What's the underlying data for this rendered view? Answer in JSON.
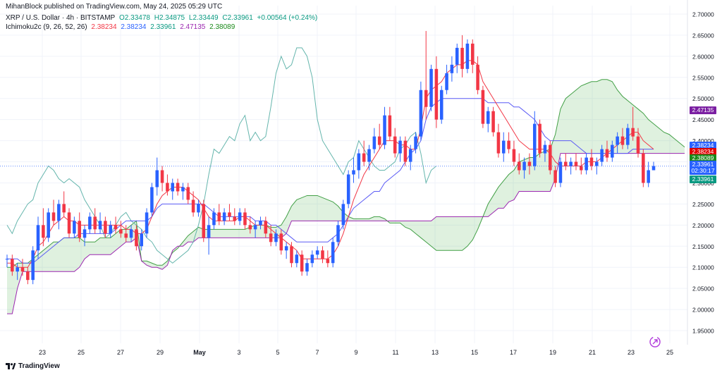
{
  "header": {
    "publisher": "MihanBlock published on TradingView.com, May 24, 2025 05:29 UTC",
    "symbol": "XRP / U.S. Dollar · 4h · BITSTAMP",
    "open": "O2.33478",
    "high": "H2.34875",
    "low": "L2.33449",
    "close": "C2.33961",
    "change": "+0.00564 (+0.24%)",
    "indicator": "Ichimoku2c (9, 26, 52, 26)",
    "ind_values": [
      "2.38234",
      "2.38234",
      "2.33961",
      "2.47135",
      "2.38089"
    ]
  },
  "price_tags": [
    {
      "label": "2.47135",
      "color": "#7b1fa2",
      "value": 2.47135
    },
    {
      "label": "2.38234",
      "color": "#2962ff",
      "value": 2.3892
    },
    {
      "label": "2.38234",
      "color": "#e00000",
      "value": 2.3738
    },
    {
      "label": "2.38089",
      "color": "#1b8a1b",
      "value": 2.3588
    },
    {
      "label": "2.33961",
      "color": "#2962ff",
      "value": 2.3432
    },
    {
      "label": "02:30:17",
      "color": "#2962ff",
      "value": 2.329
    },
    {
      "label": "2.33961",
      "color": "#089981",
      "value": 2.3085
    }
  ],
  "footer": {
    "brand": "TradingView"
  },
  "colors": {
    "up": "#2962ff",
    "down": "#f23645",
    "tenkan": "#f23645",
    "kijun": "#5b5bf5",
    "chikou": "#64b5ac",
    "spanA": "#43a047",
    "spanB": "#9c27b0",
    "cloud": "rgba(76,175,80,0.18)",
    "grid": "#f0f3fa"
  },
  "chart_data": {
    "type": "candlestick",
    "title": "XRP / U.S. Dollar · 4h · BITSTAMP",
    "ylim": [
      1.92,
      2.72
    ],
    "y_ticks": [
      "2.70000",
      "2.65000",
      "2.60000",
      "2.55000",
      "2.50000",
      "2.45000",
      "2.40000",
      "2.35000",
      "2.30000",
      "2.25000",
      "2.20000",
      "2.15000",
      "2.10000",
      "2.05000",
      "2.00000",
      "1.95000"
    ],
    "x_labels": [
      "23",
      "25",
      "27",
      "29",
      "May",
      "3",
      "5",
      "7",
      "9",
      "11",
      "13",
      "15",
      "17",
      "19",
      "21",
      "23",
      "25"
    ],
    "last_price": 2.33961,
    "candles": [
      [
        2.12,
        2.13,
        2.1,
        2.12
      ],
      [
        2.12,
        2.13,
        2.08,
        2.09
      ],
      [
        2.09,
        2.11,
        2.07,
        2.1
      ],
      [
        2.1,
        2.12,
        2.08,
        2.09
      ],
      [
        2.09,
        2.1,
        2.06,
        2.07
      ],
      [
        2.07,
        2.15,
        2.06,
        2.14
      ],
      [
        2.14,
        2.22,
        2.12,
        2.2
      ],
      [
        2.2,
        2.24,
        2.15,
        2.17
      ],
      [
        2.17,
        2.24,
        2.16,
        2.23
      ],
      [
        2.23,
        2.26,
        2.2,
        2.21
      ],
      [
        2.21,
        2.26,
        2.19,
        2.25
      ],
      [
        2.25,
        2.28,
        2.22,
        2.23
      ],
      [
        2.23,
        2.24,
        2.17,
        2.18
      ],
      [
        2.18,
        2.22,
        2.17,
        2.21
      ],
      [
        2.21,
        2.23,
        2.16,
        2.17
      ],
      [
        2.17,
        2.2,
        2.15,
        2.19
      ],
      [
        2.19,
        2.23,
        2.18,
        2.22
      ],
      [
        2.22,
        2.24,
        2.18,
        2.19
      ],
      [
        2.19,
        2.23,
        2.18,
        2.21
      ],
      [
        2.21,
        2.22,
        2.17,
        2.18
      ],
      [
        2.18,
        2.21,
        2.17,
        2.2
      ],
      [
        2.2,
        2.22,
        2.18,
        2.19
      ],
      [
        2.19,
        2.21,
        2.17,
        2.18
      ],
      [
        2.18,
        2.2,
        2.16,
        2.17
      ],
      [
        2.17,
        2.2,
        2.16,
        2.19
      ],
      [
        2.19,
        2.2,
        2.14,
        2.15
      ],
      [
        2.15,
        2.19,
        2.14,
        2.18
      ],
      [
        2.18,
        2.24,
        2.17,
        2.23
      ],
      [
        2.23,
        2.3,
        2.22,
        2.29
      ],
      [
        2.29,
        2.36,
        2.27,
        2.33
      ],
      [
        2.33,
        2.34,
        2.28,
        2.3
      ],
      [
        2.3,
        2.32,
        2.27,
        2.28
      ],
      [
        2.28,
        2.31,
        2.26,
        2.3
      ],
      [
        2.3,
        2.31,
        2.27,
        2.28
      ],
      [
        2.28,
        2.3,
        2.26,
        2.29
      ],
      [
        2.29,
        2.3,
        2.25,
        2.26
      ],
      [
        2.26,
        2.28,
        2.22,
        2.23
      ],
      [
        2.23,
        2.26,
        2.22,
        2.25
      ],
      [
        2.25,
        2.26,
        2.16,
        2.17
      ],
      [
        2.17,
        2.22,
        2.13,
        2.2
      ],
      [
        2.2,
        2.24,
        2.19,
        2.23
      ],
      [
        2.23,
        2.25,
        2.2,
        2.21
      ],
      [
        2.21,
        2.24,
        2.2,
        2.23
      ],
      [
        2.23,
        2.25,
        2.21,
        2.22
      ],
      [
        2.22,
        2.24,
        2.2,
        2.21
      ],
      [
        2.21,
        2.24,
        2.2,
        2.23
      ],
      [
        2.23,
        2.24,
        2.19,
        2.2
      ],
      [
        2.2,
        2.22,
        2.18,
        2.19
      ],
      [
        2.19,
        2.21,
        2.17,
        2.2
      ],
      [
        2.2,
        2.22,
        2.19,
        2.21
      ],
      [
        2.21,
        2.22,
        2.17,
        2.18
      ],
      [
        2.18,
        2.2,
        2.15,
        2.16
      ],
      [
        2.16,
        2.19,
        2.15,
        2.18
      ],
      [
        2.18,
        2.19,
        2.13,
        2.14
      ],
      [
        2.14,
        2.16,
        2.12,
        2.15
      ],
      [
        2.15,
        2.16,
        2.1,
        2.11
      ],
      [
        2.11,
        2.14,
        2.1,
        2.13
      ],
      [
        2.13,
        2.14,
        2.08,
        2.09
      ],
      [
        2.09,
        2.12,
        2.08,
        2.11
      ],
      [
        2.11,
        2.14,
        2.1,
        2.13
      ],
      [
        2.13,
        2.15,
        2.12,
        2.14
      ],
      [
        2.14,
        2.15,
        2.11,
        2.12
      ],
      [
        2.12,
        2.14,
        2.1,
        2.11
      ],
      [
        2.11,
        2.17,
        2.1,
        2.16
      ],
      [
        2.16,
        2.21,
        2.15,
        2.2
      ],
      [
        2.2,
        2.26,
        2.19,
        2.25
      ],
      [
        2.25,
        2.33,
        2.24,
        2.32
      ],
      [
        2.32,
        2.36,
        2.3,
        2.33
      ],
      [
        2.33,
        2.38,
        2.31,
        2.37
      ],
      [
        2.37,
        2.4,
        2.34,
        2.35
      ],
      [
        2.35,
        2.39,
        2.33,
        2.38
      ],
      [
        2.38,
        2.43,
        2.37,
        2.41
      ],
      [
        2.41,
        2.44,
        2.38,
        2.39
      ],
      [
        2.39,
        2.48,
        2.38,
        2.46
      ],
      [
        2.46,
        2.48,
        2.4,
        2.41
      ],
      [
        2.41,
        2.43,
        2.36,
        2.37
      ],
      [
        2.37,
        2.41,
        2.35,
        2.4
      ],
      [
        2.4,
        2.41,
        2.34,
        2.35
      ],
      [
        2.35,
        2.39,
        2.33,
        2.38
      ],
      [
        2.38,
        2.42,
        2.37,
        2.41
      ],
      [
        2.41,
        2.54,
        2.4,
        2.52
      ],
      [
        2.52,
        2.66,
        2.45,
        2.48
      ],
      [
        2.48,
        2.58,
        2.47,
        2.57
      ],
      [
        2.57,
        2.6,
        2.43,
        2.45
      ],
      [
        2.45,
        2.53,
        2.44,
        2.52
      ],
      [
        2.52,
        2.58,
        2.51,
        2.56
      ],
      [
        2.56,
        2.6,
        2.54,
        2.58
      ],
      [
        2.58,
        2.63,
        2.56,
        2.62
      ],
      [
        2.62,
        2.65,
        2.55,
        2.57
      ],
      [
        2.57,
        2.64,
        2.56,
        2.63
      ],
      [
        2.63,
        2.64,
        2.56,
        2.58
      ],
      [
        2.58,
        2.6,
        2.51,
        2.52
      ],
      [
        2.52,
        2.53,
        2.43,
        2.44
      ],
      [
        2.44,
        2.48,
        2.42,
        2.47
      ],
      [
        2.47,
        2.48,
        2.41,
        2.42
      ],
      [
        2.42,
        2.44,
        2.36,
        2.37
      ],
      [
        2.37,
        2.42,
        2.35,
        2.4
      ],
      [
        2.4,
        2.42,
        2.37,
        2.38
      ],
      [
        2.38,
        2.4,
        2.34,
        2.35
      ],
      [
        2.35,
        2.37,
        2.32,
        2.33
      ],
      [
        2.33,
        2.36,
        2.31,
        2.35
      ],
      [
        2.35,
        2.37,
        2.32,
        2.34
      ],
      [
        2.34,
        2.47,
        2.33,
        2.44
      ],
      [
        2.44,
        2.45,
        2.36,
        2.37
      ],
      [
        2.37,
        2.4,
        2.35,
        2.39
      ],
      [
        2.39,
        2.4,
        2.32,
        2.33
      ],
      [
        2.33,
        2.34,
        2.29,
        2.3
      ],
      [
        2.3,
        2.36,
        2.29,
        2.35
      ],
      [
        2.35,
        2.37,
        2.33,
        2.34
      ],
      [
        2.34,
        2.36,
        2.32,
        2.35
      ],
      [
        2.35,
        2.37,
        2.33,
        2.34
      ],
      [
        2.34,
        2.36,
        2.32,
        2.33
      ],
      [
        2.33,
        2.37,
        2.32,
        2.36
      ],
      [
        2.36,
        2.38,
        2.33,
        2.34
      ],
      [
        2.34,
        2.36,
        2.32,
        2.35
      ],
      [
        2.35,
        2.39,
        2.34,
        2.38
      ],
      [
        2.38,
        2.4,
        2.35,
        2.36
      ],
      [
        2.36,
        2.4,
        2.35,
        2.39
      ],
      [
        2.39,
        2.42,
        2.37,
        2.41
      ],
      [
        2.41,
        2.43,
        2.38,
        2.39
      ],
      [
        2.39,
        2.44,
        2.38,
        2.43
      ],
      [
        2.43,
        2.48,
        2.4,
        2.41
      ],
      [
        2.41,
        2.43,
        2.36,
        2.37
      ],
      [
        2.37,
        2.38,
        2.29,
        2.3
      ],
      [
        2.3,
        2.35,
        2.29,
        2.33
      ],
      [
        2.33,
        2.35,
        2.33,
        2.34
      ]
    ],
    "series": [
      {
        "name": "Tenkan",
        "value": 2.38234,
        "values": [
          2.11,
          2.11,
          2.1,
          2.1,
          2.1,
          2.12,
          2.15,
          2.16,
          2.18,
          2.2,
          2.21,
          2.22,
          2.21,
          2.21,
          2.2,
          2.2,
          2.2,
          2.2,
          2.2,
          2.2,
          2.2,
          2.2,
          2.2,
          2.19,
          2.19,
          2.18,
          2.18,
          2.19,
          2.22,
          2.25,
          2.27,
          2.28,
          2.29,
          2.29,
          2.29,
          2.28,
          2.27,
          2.26,
          2.24,
          2.22,
          2.21,
          2.21,
          2.21,
          2.21,
          2.21,
          2.22,
          2.22,
          2.21,
          2.2,
          2.2,
          2.2,
          2.19,
          2.18,
          2.17,
          2.16,
          2.15,
          2.14,
          2.12,
          2.12,
          2.12,
          2.12,
          2.12,
          2.12,
          2.13,
          2.15,
          2.18,
          2.22,
          2.26,
          2.29,
          2.32,
          2.34,
          2.36,
          2.38,
          2.4,
          2.4,
          2.4,
          2.39,
          2.39,
          2.38,
          2.38,
          2.43,
          2.5,
          2.52,
          2.53,
          2.54,
          2.56,
          2.57,
          2.58,
          2.58,
          2.59,
          2.59,
          2.58,
          2.54,
          2.52,
          2.5,
          2.48,
          2.46,
          2.44,
          2.42,
          2.4,
          2.39,
          2.38,
          2.38,
          2.38,
          2.38,
          2.37,
          2.35,
          2.34,
          2.34,
          2.34,
          2.34,
          2.34,
          2.35,
          2.35,
          2.35,
          2.36,
          2.37,
          2.38,
          2.39,
          2.4,
          2.41,
          2.42,
          2.42,
          2.4,
          2.39,
          2.38
        ]
      },
      {
        "name": "Kijun",
        "value": 2.38234,
        "values": [
          2.12,
          2.12,
          2.12,
          2.11,
          2.11,
          2.11,
          2.12,
          2.13,
          2.14,
          2.15,
          2.16,
          2.17,
          2.17,
          2.17,
          2.18,
          2.18,
          2.18,
          2.18,
          2.18,
          2.18,
          2.18,
          2.19,
          2.2,
          2.21,
          2.21,
          2.21,
          2.21,
          2.21,
          2.22,
          2.24,
          2.25,
          2.25,
          2.25,
          2.25,
          2.25,
          2.25,
          2.25,
          2.25,
          2.25,
          2.24,
          2.23,
          2.22,
          2.22,
          2.22,
          2.22,
          2.22,
          2.22,
          2.22,
          2.21,
          2.21,
          2.21,
          2.2,
          2.2,
          2.19,
          2.18,
          2.17,
          2.16,
          2.16,
          2.16,
          2.16,
          2.16,
          2.16,
          2.16,
          2.17,
          2.18,
          2.2,
          2.22,
          2.24,
          2.25,
          2.26,
          2.27,
          2.28,
          2.28,
          2.3,
          2.31,
          2.32,
          2.33,
          2.35,
          2.37,
          2.38,
          2.4,
          2.45,
          2.48,
          2.49,
          2.5,
          2.5,
          2.5,
          2.5,
          2.5,
          2.5,
          2.5,
          2.5,
          2.5,
          2.49,
          2.49,
          2.49,
          2.49,
          2.49,
          2.48,
          2.48,
          2.47,
          2.46,
          2.45,
          2.43,
          2.41,
          2.4,
          2.4,
          2.4,
          2.4,
          2.4,
          2.39,
          2.38,
          2.37,
          2.37,
          2.37,
          2.37,
          2.37,
          2.37,
          2.37,
          2.37,
          2.37,
          2.38,
          2.38,
          2.38,
          2.38,
          2.38
        ]
      },
      {
        "name": "Chikou",
        "value": 2.33961,
        "values": [
          2.2,
          2.18,
          2.21,
          2.23,
          2.25,
          2.26,
          2.3,
          2.32,
          2.34,
          2.33,
          2.31,
          2.3,
          2.31,
          2.3,
          2.29,
          2.26,
          2.24,
          2.22,
          2.2,
          2.17,
          2.18,
          2.2,
          2.22,
          2.23,
          2.21,
          2.2,
          2.19,
          2.17,
          2.16,
          2.14,
          2.13,
          2.12,
          2.11,
          2.12,
          2.13,
          2.14,
          2.16,
          2.2,
          2.25,
          2.32,
          2.38,
          2.37,
          2.39,
          2.41,
          2.4,
          2.44,
          2.46,
          2.4,
          2.42,
          2.4,
          2.41,
          2.48,
          2.56,
          2.6,
          2.57,
          2.58,
          2.62,
          2.62,
          2.6,
          2.55,
          2.45,
          2.4,
          2.38,
          2.36,
          2.34,
          2.32,
          2.35,
          2.36,
          2.4,
          2.38,
          2.36,
          2.34,
          2.33,
          2.33,
          2.34,
          2.35,
          2.38,
          2.39,
          2.41,
          2.42,
          2.37,
          2.3,
          2.33,
          2.34
        ]
      },
      {
        "name": "Senkou A",
        "value": 2.38089
      },
      {
        "name": "Senkou B",
        "value": 2.47135
      }
    ]
  }
}
